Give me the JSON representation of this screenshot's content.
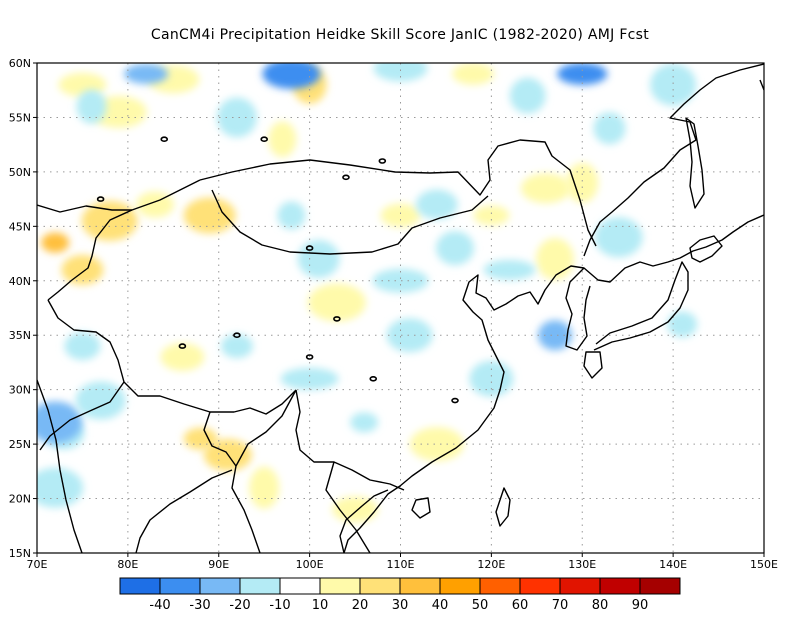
{
  "title": "CanCM4i  Precipitation Heidke Skill Score JanIC (1982-2020) AMJ Fcst",
  "map": {
    "lon_range": [
      70,
      150
    ],
    "lat_range": [
      15,
      60
    ],
    "lon_ticks": [
      70,
      80,
      90,
      100,
      110,
      120,
      130,
      140,
      150
    ],
    "lon_tick_labels": [
      "70E",
      "80E",
      "90E",
      "100E",
      "110E",
      "120E",
      "130E",
      "140E",
      "150E"
    ],
    "lat_ticks": [
      15,
      20,
      25,
      30,
      35,
      40,
      45,
      50,
      55,
      60
    ],
    "lat_tick_labels": [
      "15N",
      "20N",
      "25N",
      "30N",
      "35N",
      "40N",
      "45N",
      "50N",
      "55N",
      "60N"
    ],
    "gridlines": "dotted"
  },
  "colorbar": {
    "colors": [
      "#1e6fe6",
      "#3c8ef0",
      "#78b9f5",
      "#b4ebf5",
      "#ffffff",
      "#fffaaa",
      "#ffe178",
      "#ffc03c",
      "#ffa000",
      "#ff6000",
      "#ff3200",
      "#e11400",
      "#c00000",
      "#a50000"
    ],
    "labels": [
      "-40",
      "-30",
      "-20",
      "-10",
      "10",
      "20",
      "30",
      "40",
      "50",
      "60",
      "70",
      "80",
      "90"
    ]
  },
  "field_patches": [
    {
      "lon": 72,
      "lat": 43.5,
      "level": 40
    },
    {
      "lon": 75,
      "lat": 41,
      "level": 30
    },
    {
      "lon": 78,
      "lat": 45.5,
      "level": 30
    },
    {
      "lon": 83,
      "lat": 47,
      "level": 20
    },
    {
      "lon": 89,
      "lat": 46,
      "level": 30
    },
    {
      "lon": 88,
      "lat": 25.5,
      "level": 30
    },
    {
      "lon": 91,
      "lat": 24,
      "level": 30
    },
    {
      "lon": 95,
      "lat": 21,
      "level": 20
    },
    {
      "lon": 86,
      "lat": 33,
      "level": 20
    },
    {
      "lon": 103,
      "lat": 38,
      "level": 20
    },
    {
      "lon": 110,
      "lat": 46,
      "level": 20
    },
    {
      "lon": 114,
      "lat": 25,
      "level": 20
    },
    {
      "lon": 120,
      "lat": 46,
      "level": 20
    },
    {
      "lon": 126,
      "lat": 48.5,
      "level": 20
    },
    {
      "lon": 130,
      "lat": 49,
      "level": 20
    },
    {
      "lon": 105,
      "lat": 19,
      "level": 20
    },
    {
      "lon": 97,
      "lat": 53,
      "level": 20
    },
    {
      "lon": 118,
      "lat": 59,
      "level": 20
    },
    {
      "lon": 79,
      "lat": 55.5,
      "level": 20
    },
    {
      "lon": 127,
      "lat": 42,
      "level": 20
    },
    {
      "lon": 85,
      "lat": 58.5,
      "level": 20
    },
    {
      "lon": 100,
      "lat": 58,
      "level": 30
    },
    {
      "lon": 75,
      "lat": 58,
      "level": 20
    },
    {
      "lon": 76,
      "lat": 56,
      "level": -10
    },
    {
      "lon": 82,
      "lat": 59,
      "level": -20
    },
    {
      "lon": 98,
      "lat": 59,
      "level": -30
    },
    {
      "lon": 92,
      "lat": 55,
      "level": -10
    },
    {
      "lon": 110,
      "lat": 59.5,
      "level": -10
    },
    {
      "lon": 124,
      "lat": 57,
      "level": -10
    },
    {
      "lon": 130,
      "lat": 59,
      "level": -30
    },
    {
      "lon": 133,
      "lat": 54,
      "level": -10
    },
    {
      "lon": 140,
      "lat": 58,
      "level": -10
    },
    {
      "lon": 98,
      "lat": 46,
      "level": -10
    },
    {
      "lon": 101,
      "lat": 42,
      "level": -10
    },
    {
      "lon": 110,
      "lat": 40,
      "level": -10
    },
    {
      "lon": 116,
      "lat": 43,
      "level": -10
    },
    {
      "lon": 122,
      "lat": 41,
      "level": -10
    },
    {
      "lon": 127,
      "lat": 35,
      "level": -20
    },
    {
      "lon": 134,
      "lat": 44,
      "level": -10
    },
    {
      "lon": 141,
      "lat": 36,
      "level": -10
    },
    {
      "lon": 120,
      "lat": 31,
      "level": -10
    },
    {
      "lon": 100,
      "lat": 31,
      "level": -10
    },
    {
      "lon": 73,
      "lat": 26,
      "level": -10
    },
    {
      "lon": 72,
      "lat": 27,
      "level": -20
    },
    {
      "lon": 75,
      "lat": 34,
      "level": -10
    },
    {
      "lon": 77,
      "lat": 29,
      "level": -10
    },
    {
      "lon": 92,
      "lat": 34,
      "level": -10
    },
    {
      "lon": 111,
      "lat": 35,
      "level": -10
    },
    {
      "lon": 106,
      "lat": 27,
      "level": -10
    },
    {
      "lon": 114,
      "lat": 47,
      "level": -10
    },
    {
      "lon": 72,
      "lat": 21,
      "level": -10
    }
  ]
}
